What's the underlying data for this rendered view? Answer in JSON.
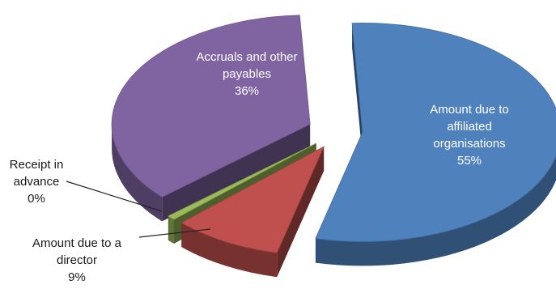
{
  "chart_data": {
    "type": "pie",
    "style": "3d-exploded",
    "title": "",
    "slices": [
      {
        "name": "Amount due to affiliated organisations",
        "value": 55,
        "label_lines": [
          "Amount due to",
          "affiliated",
          "organisations"
        ],
        "pct_label": "55%",
        "color": "#4f81bd"
      },
      {
        "name": "Amount due to a director",
        "value": 9,
        "label_lines": [
          "Amount due to a",
          "director"
        ],
        "pct_label": "9%",
        "color": "#c0504d"
      },
      {
        "name": "Receipt in advance",
        "value": 0,
        "label_lines": [
          "Receipt in",
          "advance"
        ],
        "pct_label": "0%",
        "color": "#9bbb59"
      },
      {
        "name": "Accruals and other payables",
        "value": 36,
        "label_lines": [
          "Accruals and other",
          "payables"
        ],
        "pct_label": "36%",
        "color": "#8064a2"
      }
    ]
  }
}
